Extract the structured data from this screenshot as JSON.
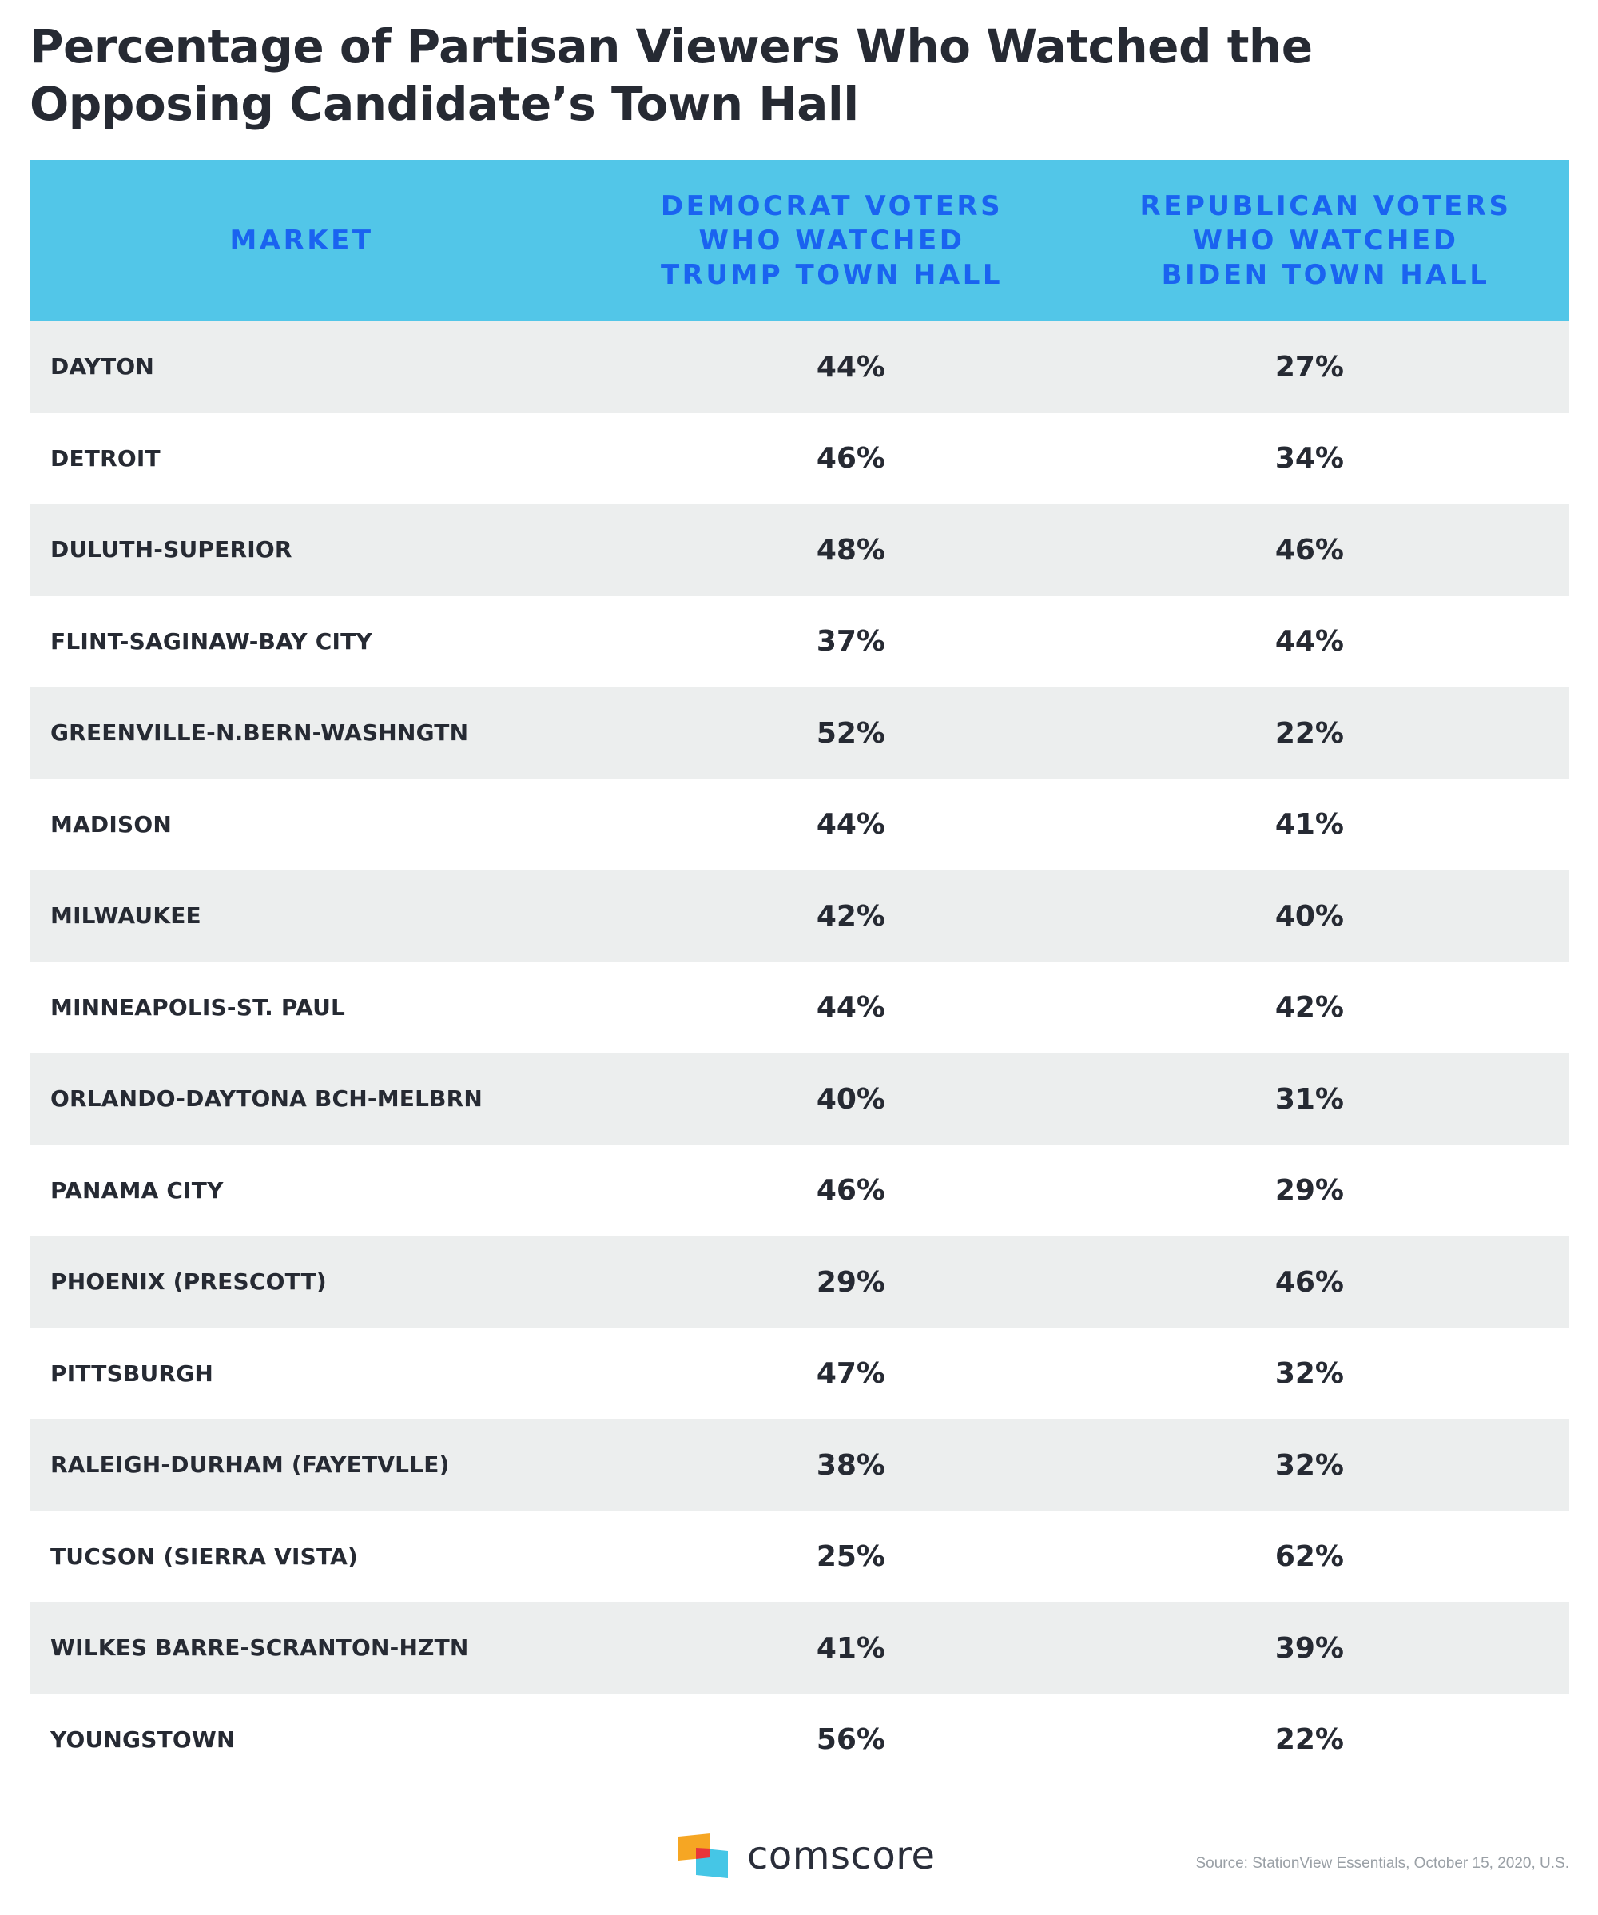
{
  "chart_data": {
    "type": "table",
    "title": "Percentage of Partisan Viewers Who Watched the Opposing Candidate’s Town Hall",
    "columns": [
      "MARKET",
      "DEMOCRAT VOTERS\nWHO WATCHED\nTRUMP TOWN HALL",
      "REPUBLICAN VOTERS\nWHO WATCHED\nBIDEN TOWN HALL"
    ],
    "rows": [
      {
        "market": "DAYTON",
        "dem": "44%",
        "rep": "27%"
      },
      {
        "market": "DETROIT",
        "dem": "46%",
        "rep": "34%"
      },
      {
        "market": "DULUTH-SUPERIOR",
        "dem": "48%",
        "rep": "46%"
      },
      {
        "market": "FLINT-SAGINAW-BAY CITY",
        "dem": "37%",
        "rep": "44%"
      },
      {
        "market": "GREENVILLE-N.BERN-WASHNGTN",
        "dem": "52%",
        "rep": "22%"
      },
      {
        "market": "MADISON",
        "dem": "44%",
        "rep": "41%"
      },
      {
        "market": "MILWAUKEE",
        "dem": "42%",
        "rep": "40%"
      },
      {
        "market": "MINNEAPOLIS-ST. PAUL",
        "dem": "44%",
        "rep": "42%"
      },
      {
        "market": "ORLANDO-DAYTONA BCH-MELBRN",
        "dem": "40%",
        "rep": "31%"
      },
      {
        "market": "PANAMA CITY",
        "dem": "46%",
        "rep": "29%"
      },
      {
        "market": "PHOENIX (PRESCOTT)",
        "dem": "29%",
        "rep": "46%"
      },
      {
        "market": "PITTSBURGH",
        "dem": "47%",
        "rep": "32%"
      },
      {
        "market": "RALEIGH-DURHAM (FAYETVLLE)",
        "dem": "38%",
        "rep": "32%"
      },
      {
        "market": "TUCSON (SIERRA VISTA)",
        "dem": "25%",
        "rep": "62%"
      },
      {
        "market": "WILKES BARRE-SCRANTON-HZTN",
        "dem": "41%",
        "rep": "39%"
      },
      {
        "market": "YOUNGSTOWN",
        "dem": "56%",
        "rep": "22%"
      }
    ]
  },
  "footer": {
    "logo_text": "comscore",
    "source": "Source: StationView Essentials, October 15, 2020, U.S."
  },
  "colors": {
    "header_bg": "#52c6e8",
    "header_text": "#1a63f0",
    "row_alt": "#eceeee",
    "text": "#262a33",
    "logo_orange": "#f6a623",
    "logo_red": "#e8363a",
    "logo_cyan": "#45c6e6"
  }
}
